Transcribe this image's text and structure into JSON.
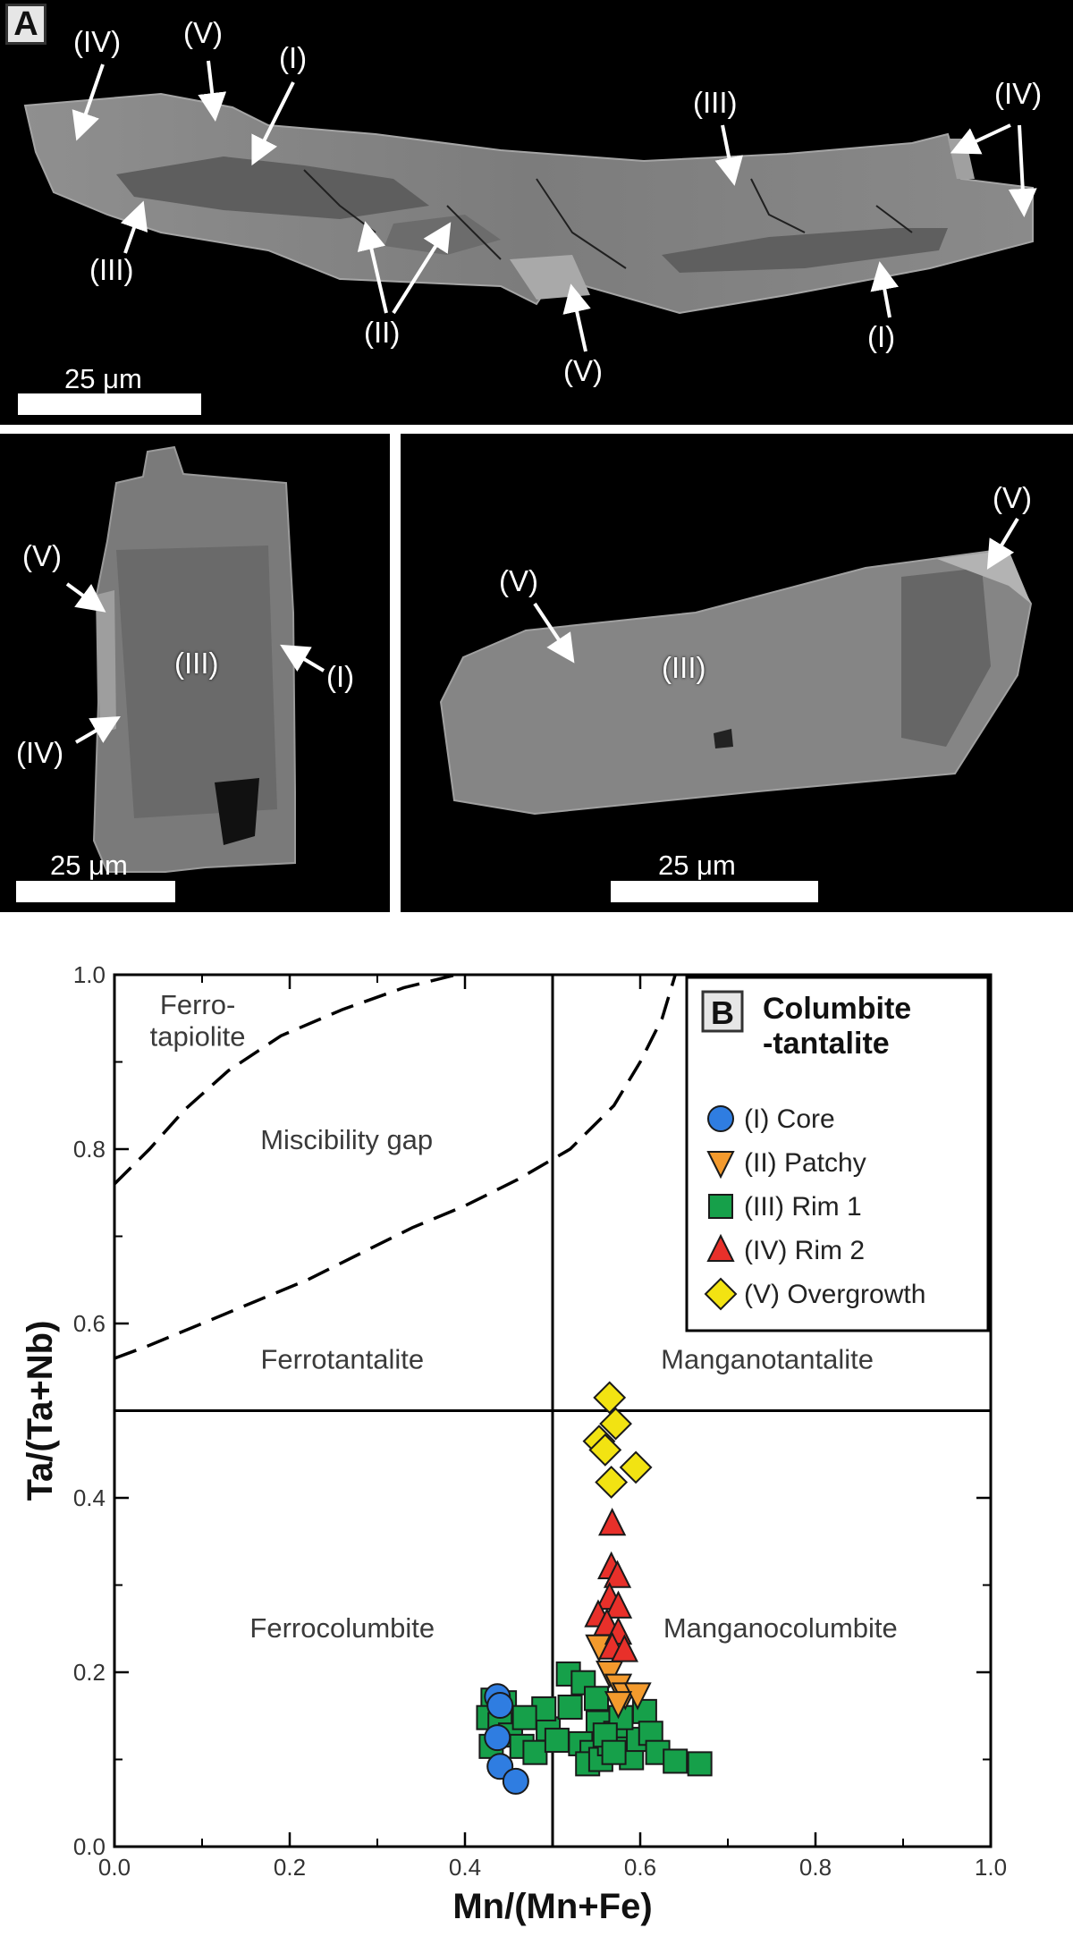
{
  "panel_a": {
    "tag": "A",
    "scale_label": "25 μm",
    "top_labels": {
      "iv_left": "(IV)",
      "v_top": "(V)",
      "i_top": "(I)",
      "iii_left": "(III)",
      "ii": "(II)",
      "v_bottom": "(V)",
      "iii_top": "(III)",
      "iv_right": "(IV)",
      "i_right": "(I)"
    },
    "left_labels": {
      "v": "(V)",
      "iii": "(III)",
      "i": "(I)",
      "iv": "(IV)"
    },
    "right_labels": {
      "v_left": "(V)",
      "iii": "(III)",
      "v_right": "(V)"
    }
  },
  "chart_data": {
    "type": "scatter",
    "panel_tag": "B",
    "title": "Columbite\n-tantalite",
    "xlabel": "Mn/(Mn+Fe)",
    "ylabel": "Ta/(Ta+Nb)",
    "xlim": [
      0.0,
      1.0
    ],
    "ylim": [
      0.0,
      1.0
    ],
    "xticks": [
      "0.0",
      "0.2",
      "0.4",
      "0.6",
      "0.8",
      "1.0"
    ],
    "yticks": [
      "0.0",
      "0.2",
      "0.4",
      "0.6",
      "0.8",
      "1.0"
    ],
    "grid": false,
    "legend_position": "top-right",
    "boundaries": {
      "x": 0.5,
      "y": 0.5
    },
    "field_labels": [
      {
        "text": "Ferro-\ntapiolite",
        "x": 0.095,
        "y": 0.955
      },
      {
        "text": "Miscibility gap",
        "x": 0.265,
        "y": 0.8
      },
      {
        "text": "Ferrotantalite",
        "x": 0.26,
        "y": 0.548
      },
      {
        "text": "Manganotantalite",
        "x": 0.745,
        "y": 0.548
      },
      {
        "text": "Ferrocolumbite",
        "x": 0.26,
        "y": 0.24
      },
      {
        "text": "Manganocolumbite",
        "x": 0.76,
        "y": 0.24
      }
    ],
    "miscibility_gap_curve": [
      [
        0.0,
        0.56
      ],
      [
        0.04,
        0.575
      ],
      [
        0.1,
        0.6
      ],
      [
        0.16,
        0.625
      ],
      [
        0.22,
        0.65
      ],
      [
        0.28,
        0.68
      ],
      [
        0.34,
        0.71
      ],
      [
        0.4,
        0.735
      ],
      [
        0.46,
        0.765
      ],
      [
        0.52,
        0.8
      ],
      [
        0.57,
        0.85
      ],
      [
        0.6,
        0.9
      ],
      [
        0.625,
        0.95
      ],
      [
        0.64,
        1.0
      ]
    ],
    "ferrotapiolite_curve": [
      [
        0.0,
        0.76
      ],
      [
        0.04,
        0.8
      ],
      [
        0.08,
        0.845
      ],
      [
        0.13,
        0.89
      ],
      [
        0.19,
        0.93
      ],
      [
        0.26,
        0.96
      ],
      [
        0.33,
        0.985
      ],
      [
        0.39,
        1.0
      ]
    ],
    "series": [
      {
        "name": "(I) Core",
        "marker": "circle",
        "color": "#2f7de1",
        "points": [
          [
            0.437,
            0.172
          ],
          [
            0.44,
            0.162
          ],
          [
            0.437,
            0.125
          ],
          [
            0.44,
            0.092
          ],
          [
            0.458,
            0.075
          ]
        ]
      },
      {
        "name": "(II) Patchy",
        "marker": "triangle-down",
        "color": "#f39a2d",
        "points": [
          [
            0.553,
            0.23
          ],
          [
            0.565,
            0.2
          ],
          [
            0.575,
            0.185
          ],
          [
            0.583,
            0.175
          ],
          [
            0.597,
            0.175
          ],
          [
            0.575,
            0.165
          ]
        ]
      },
      {
        "name": "(III) Rim 1",
        "marker": "square",
        "color": "#16a04a",
        "points": [
          [
            0.432,
            0.168
          ],
          [
            0.445,
            0.165
          ],
          [
            0.427,
            0.148
          ],
          [
            0.44,
            0.14
          ],
          [
            0.452,
            0.128
          ],
          [
            0.43,
            0.115
          ],
          [
            0.465,
            0.115
          ],
          [
            0.48,
            0.108
          ],
          [
            0.495,
            0.135
          ],
          [
            0.505,
            0.122
          ],
          [
            0.518,
            0.198
          ],
          [
            0.535,
            0.188
          ],
          [
            0.52,
            0.16
          ],
          [
            0.55,
            0.17
          ],
          [
            0.552,
            0.142
          ],
          [
            0.532,
            0.118
          ],
          [
            0.545,
            0.108
          ],
          [
            0.54,
            0.095
          ],
          [
            0.555,
            0.1
          ],
          [
            0.565,
            0.118
          ],
          [
            0.572,
            0.13
          ],
          [
            0.583,
            0.112
          ],
          [
            0.59,
            0.102
          ],
          [
            0.598,
            0.123
          ],
          [
            0.605,
            0.155
          ],
          [
            0.612,
            0.13
          ],
          [
            0.62,
            0.108
          ],
          [
            0.64,
            0.098
          ],
          [
            0.668,
            0.095
          ],
          [
            0.49,
            0.158
          ],
          [
            0.468,
            0.148
          ],
          [
            0.578,
            0.148
          ],
          [
            0.56,
            0.128
          ],
          [
            0.57,
            0.108
          ]
        ]
      },
      {
        "name": "(IV) Rim 2",
        "marker": "triangle-up",
        "color": "#e8302a",
        "points": [
          [
            0.568,
            0.37
          ],
          [
            0.567,
            0.32
          ],
          [
            0.574,
            0.31
          ],
          [
            0.565,
            0.285
          ],
          [
            0.575,
            0.275
          ],
          [
            0.552,
            0.265
          ],
          [
            0.562,
            0.255
          ],
          [
            0.575,
            0.245
          ],
          [
            0.568,
            0.228
          ],
          [
            0.582,
            0.225
          ]
        ]
      },
      {
        "name": "(V) Overgrowth",
        "marker": "diamond",
        "color": "#f2e312",
        "points": [
          [
            0.565,
            0.515
          ],
          [
            0.572,
            0.485
          ],
          [
            0.553,
            0.465
          ],
          [
            0.56,
            0.455
          ],
          [
            0.595,
            0.435
          ],
          [
            0.567,
            0.418
          ]
        ]
      }
    ]
  }
}
